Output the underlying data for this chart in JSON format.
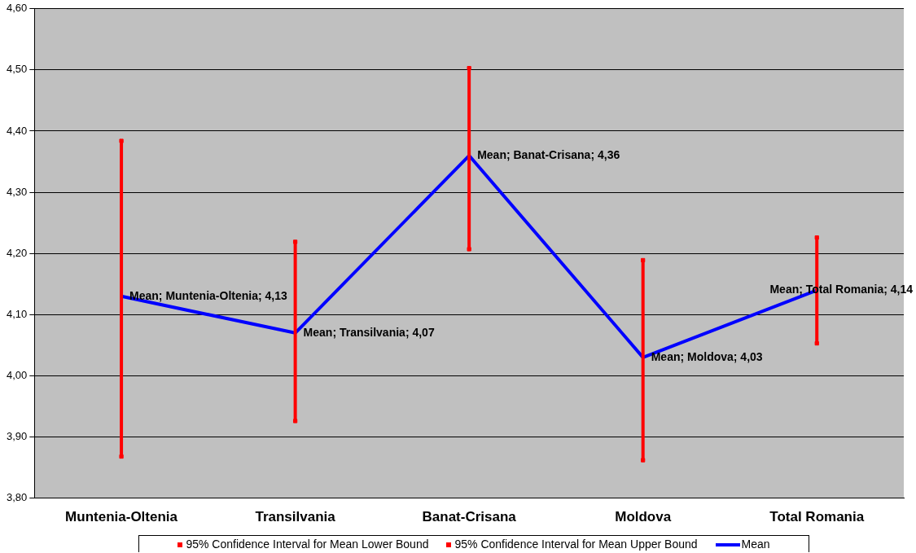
{
  "chart_data": {
    "type": "line",
    "categories": [
      "Muntenia-Oltenia",
      "Transilvania",
      "Banat-Crisana",
      "Moldova",
      "Total Romania"
    ],
    "series": [
      {
        "name": "95% Confidence Interval for Mean Lower Bound",
        "type": "scatter",
        "marker": "square",
        "color": "#ff0000",
        "values": [
          3.868,
          3.926,
          4.207,
          3.862,
          4.053
        ]
      },
      {
        "name": "95% Confidence Interval for Mean Upper Bound",
        "type": "scatter",
        "marker": "square",
        "color": "#ff0000",
        "values": [
          4.384,
          4.219,
          4.503,
          4.189,
          4.226
        ]
      },
      {
        "name": "Mean",
        "color": "#0000ff",
        "values": [
          4.13,
          4.07,
          4.36,
          4.03,
          4.14
        ],
        "value_labels": [
          "Mean; Muntenia-Oltenia; 4,13",
          "Mean; Transilvania; 4,07",
          "Mean; Banat-Crisana; 4,36",
          "Mean; Moldova; 4,03",
          "Mean; Total Romania; 4,14"
        ]
      }
    ],
    "ylim": [
      3.8,
      4.6
    ],
    "yticks": [
      {
        "value": 3.8,
        "label": "3,80"
      },
      {
        "value": 3.9,
        "label": "3,90"
      },
      {
        "value": 4.0,
        "label": "4,00"
      },
      {
        "value": 4.1,
        "label": "4,10"
      },
      {
        "value": 4.2,
        "label": "4,20"
      },
      {
        "value": 4.3,
        "label": "4,30"
      },
      {
        "value": 4.4,
        "label": "4,40"
      },
      {
        "value": 4.5,
        "label": "4,50"
      },
      {
        "value": 4.6,
        "label": "4,60"
      }
    ],
    "grid": "y",
    "legend": "bottom"
  }
}
